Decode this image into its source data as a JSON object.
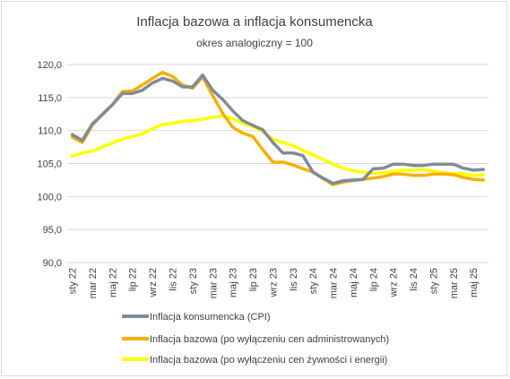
{
  "chart_data": {
    "type": "line",
    "title": "Inflacja bazowa a inflacja konsumencka",
    "subtitle": "okres analogiczny = 100",
    "xlabel": "",
    "ylabel": "",
    "ylim": [
      90,
      120
    ],
    "yticks": [
      "90,0",
      "95,0",
      "100,0",
      "105,0",
      "110,0",
      "115,0",
      "120,0"
    ],
    "x": [
      "sty 22",
      "lut 22",
      "mar 22",
      "kwi 22",
      "maj 22",
      "cze 22",
      "lip 22",
      "sie 22",
      "wrz 22",
      "paź 22",
      "lis 22",
      "gru 22",
      "sty 23",
      "lut 23",
      "mar 23",
      "kwi 23",
      "maj 23",
      "cze 23",
      "lip 23",
      "sie 23",
      "wrz 23",
      "paź 23",
      "lis 23",
      "gru 23",
      "sty 24",
      "lut 24",
      "mar 24",
      "kwi 24",
      "maj 24",
      "cze 24",
      "lip 24",
      "sie 24",
      "wrz 24",
      "paź 24",
      "lis 24",
      "gru 24",
      "sty 25",
      "lut 25",
      "mar 25",
      "kwi 25",
      "maj 25",
      "cze 25"
    ],
    "xtick_labels": [
      "sty 22",
      "mar 22",
      "maj 22",
      "lip 22",
      "wrz 22",
      "lis 22",
      "sty 23",
      "mar 23",
      "maj 23",
      "lip 23",
      "wrz 23",
      "lis 23",
      "sty 24",
      "mar 24",
      "maj 24",
      "lip 24",
      "wrz 24",
      "lis 24",
      "sty 25",
      "mar 25",
      "maj 25"
    ],
    "grid": true,
    "legend_position": "bottom",
    "series": [
      {
        "name": "Inflacja konsumencka (CPI)",
        "color": "#7f8c99",
        "values": [
          109.4,
          108.5,
          111.0,
          112.4,
          113.9,
          115.6,
          115.6,
          116.1,
          117.2,
          117.9,
          117.5,
          116.6,
          116.6,
          118.4,
          116.1,
          114.7,
          113.0,
          111.5,
          110.8,
          110.1,
          108.2,
          106.6,
          106.6,
          106.2,
          103.7,
          102.8,
          102.0,
          102.4,
          102.5,
          102.6,
          104.2,
          104.3,
          104.9,
          104.9,
          104.7,
          104.7,
          104.9,
          104.9,
          104.9,
          104.3,
          104.0,
          104.1
        ]
      },
      {
        "name": "Inflacja bazowa (po wyłączeniu cen administrowanych)",
        "color": "#f5b000",
        "values": [
          109.0,
          108.2,
          110.8,
          112.5,
          113.9,
          115.9,
          116.0,
          116.9,
          117.9,
          118.8,
          118.2,
          116.9,
          116.4,
          118.1,
          115.3,
          112.6,
          110.5,
          109.6,
          109.1,
          107.1,
          105.2,
          105.2,
          104.8,
          104.2,
          103.7,
          102.7,
          101.8,
          102.2,
          102.4,
          102.6,
          102.8,
          103.0,
          103.4,
          103.4,
          103.2,
          103.2,
          103.4,
          103.4,
          103.3,
          102.9,
          102.6,
          102.5
        ]
      },
      {
        "name": "Inflacja bazowa (po wyłączeniu cen żywności i energii)",
        "color": "#ffff00",
        "values": [
          106.1,
          106.6,
          106.9,
          107.5,
          108.1,
          108.7,
          109.1,
          109.5,
          110.3,
          110.9,
          111.1,
          111.4,
          111.5,
          111.7,
          112.0,
          112.2,
          111.8,
          111.1,
          110.6,
          109.8,
          108.7,
          108.2,
          107.7,
          107.0,
          106.3,
          105.6,
          104.9,
          104.3,
          103.9,
          103.7,
          103.5,
          103.6,
          103.8,
          104.0,
          104.0,
          104.1,
          103.8,
          103.6,
          103.5,
          103.5,
          103.2,
          103.3
        ]
      }
    ]
  }
}
